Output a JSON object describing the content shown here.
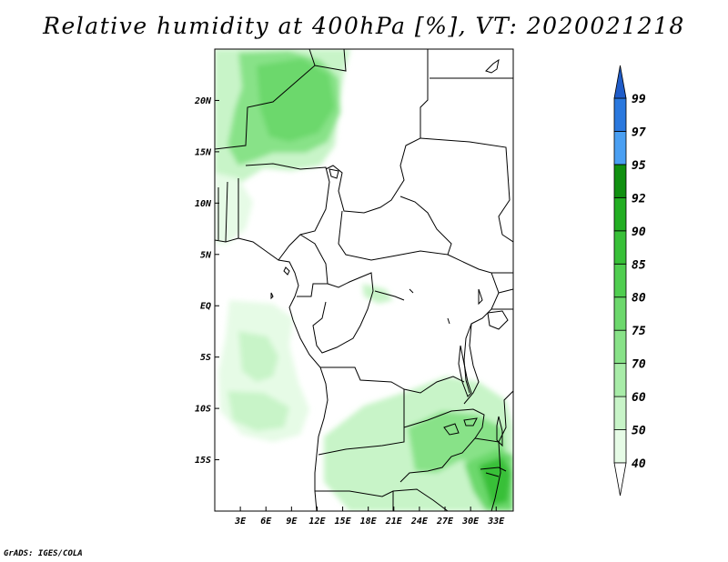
{
  "title": "Relative humidity at 400hPa [%], VT: 2020021218",
  "credit": "GrADS: IGES/COLA",
  "map": {
    "lat_range": [
      -20,
      25
    ],
    "lon_range": [
      0,
      35
    ],
    "lat_ticks": [
      {
        "value": 20,
        "label": "20N"
      },
      {
        "value": 15,
        "label": "15N"
      },
      {
        "value": 10,
        "label": "10N"
      },
      {
        "value": 5,
        "label": "5N"
      },
      {
        "value": 0,
        "label": "EQ"
      },
      {
        "value": -5,
        "label": "5S"
      },
      {
        "value": -10,
        "label": "10S"
      },
      {
        "value": -15,
        "label": "15S"
      }
    ],
    "lon_ticks": [
      {
        "value": 3,
        "label": "3E"
      },
      {
        "value": 6,
        "label": "6E"
      },
      {
        "value": 9,
        "label": "9E"
      },
      {
        "value": 12,
        "label": "12E"
      },
      {
        "value": 15,
        "label": "15E"
      },
      {
        "value": 18,
        "label": "18E"
      },
      {
        "value": 21,
        "label": "21E"
      },
      {
        "value": 24,
        "label": "24E"
      },
      {
        "value": 27,
        "label": "27E"
      },
      {
        "value": 30,
        "label": "30E"
      },
      {
        "value": 33,
        "label": "33E"
      }
    ]
  },
  "colorbar": {
    "bins": [
      {
        "from": 40,
        "to": 50,
        "color": "#e6fbe6"
      },
      {
        "from": 50,
        "to": 60,
        "color": "#c8f4c8"
      },
      {
        "from": 60,
        "to": 70,
        "color": "#a8eca8"
      },
      {
        "from": 70,
        "to": 75,
        "color": "#88e288"
      },
      {
        "from": 75,
        "to": 80,
        "color": "#6cd86c"
      },
      {
        "from": 80,
        "to": 85,
        "color": "#50ce50"
      },
      {
        "from": 85,
        "to": 90,
        "color": "#38c038"
      },
      {
        "from": 90,
        "to": 92,
        "color": "#22ae22"
      },
      {
        "from": 92,
        "to": 95,
        "color": "#109010"
      },
      {
        "from": 95,
        "to": 97,
        "color": "#4a9ff2"
      },
      {
        "from": 97,
        "to": 99,
        "color": "#2a78de"
      }
    ],
    "top_color": "#1f5cc8",
    "labels": [
      "40",
      "50",
      "60",
      "70",
      "75",
      "80",
      "85",
      "90",
      "92",
      "95",
      "97",
      "99"
    ]
  }
}
